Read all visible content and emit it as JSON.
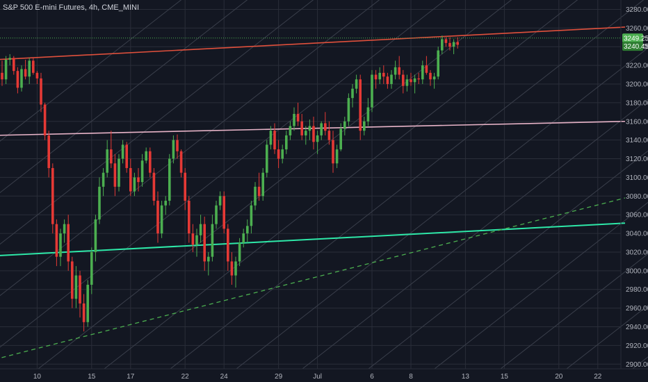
{
  "chart_title": "S&P 500 E-mini Futures, 4h, CME_MINI",
  "colors": {
    "background": "#131722",
    "grid": "#2a2e39",
    "axis_text": "#b2b5be",
    "up": "#4caf50",
    "down": "#e53935",
    "resistance": "#e0503c",
    "mid_line": "#e8b4c8",
    "support": "#2ee8a8",
    "dashed": "#4caf50",
    "channel": "#3a3f4b",
    "badge_price": "#4caf50",
    "badge_secondary": "#2e7d32"
  },
  "price_badges": {
    "last_price": "3249.25",
    "secondary": "3240.45"
  },
  "chart_data": {
    "type": "candlestick",
    "title": "S&P 500 E-mini Futures, 4h, CME_MINI",
    "ylim": [
      2895,
      3290
    ],
    "y_ticks": [
      2900,
      2920,
      2940,
      2960,
      2980,
      3000,
      3020,
      3040,
      3060,
      3080,
      3100,
      3120,
      3140,
      3160,
      3180,
      3200,
      3220,
      3240,
      3260,
      3280
    ],
    "x_ticks": [
      {
        "label": "10",
        "bar": 9
      },
      {
        "label": "15",
        "bar": 23
      },
      {
        "label": "17",
        "bar": 33
      },
      {
        "label": "22",
        "bar": 47
      },
      {
        "label": "24",
        "bar": 57
      },
      {
        "label": "29",
        "bar": 71
      },
      {
        "label": "Jul",
        "bar": 81
      },
      {
        "label": "6",
        "bar": 95
      },
      {
        "label": "8",
        "bar": 105
      },
      {
        "label": "13",
        "bar": 119
      },
      {
        "label": "15",
        "bar": 129
      },
      {
        "label": "20",
        "bar": 143
      },
      {
        "label": "22",
        "bar": 153
      }
    ],
    "candles": [
      [
        3212,
        3225,
        3198,
        3205
      ],
      [
        3205,
        3230,
        3200,
        3226
      ],
      [
        3226,
        3232,
        3220,
        3228
      ],
      [
        3228,
        3230,
        3210,
        3214
      ],
      [
        3214,
        3218,
        3190,
        3196
      ],
      [
        3196,
        3220,
        3192,
        3216
      ],
      [
        3216,
        3226,
        3205,
        3208
      ],
      [
        3208,
        3228,
        3200,
        3225
      ],
      [
        3225,
        3228,
        3210,
        3212
      ],
      [
        3212,
        3214,
        3200,
        3206
      ],
      [
        3206,
        3212,
        3170,
        3178
      ],
      [
        3178,
        3180,
        3140,
        3145
      ],
      [
        3145,
        3150,
        3100,
        3110
      ],
      [
        3110,
        3115,
        3040,
        3050
      ],
      [
        3050,
        3055,
        3005,
        3015
      ],
      [
        3015,
        3045,
        3005,
        3040
      ],
      [
        3040,
        3055,
        3030,
        3050
      ],
      [
        3050,
        3060,
        3000,
        3010
      ],
      [
        3010,
        3015,
        2960,
        2970
      ],
      [
        2970,
        3005,
        2960,
        2995
      ],
      [
        2995,
        3000,
        2950,
        2965
      ],
      [
        2965,
        2975,
        2935,
        2945
      ],
      [
        2945,
        2990,
        2940,
        2985
      ],
      [
        2985,
        3025,
        2975,
        3020
      ],
      [
        3020,
        3060,
        3010,
        3055
      ],
      [
        3055,
        3100,
        3050,
        3090
      ],
      [
        3090,
        3110,
        3080,
        3105
      ],
      [
        3105,
        3140,
        3100,
        3130
      ],
      [
        3130,
        3150,
        3110,
        3115
      ],
      [
        3115,
        3125,
        3080,
        3090
      ],
      [
        3090,
        3125,
        3085,
        3120
      ],
      [
        3120,
        3140,
        3115,
        3135
      ],
      [
        3135,
        3138,
        3105,
        3110
      ],
      [
        3110,
        3120,
        3080,
        3085
      ],
      [
        3085,
        3105,
        3080,
        3100
      ],
      [
        3100,
        3110,
        3085,
        3095
      ],
      [
        3095,
        3125,
        3090,
        3118
      ],
      [
        3118,
        3132,
        3115,
        3128
      ],
      [
        3128,
        3132,
        3100,
        3105
      ],
      [
        3105,
        3110,
        3070,
        3075
      ],
      [
        3075,
        3085,
        3030,
        3040
      ],
      [
        3040,
        3075,
        3035,
        3070
      ],
      [
        3070,
        3080,
        3060,
        3075
      ],
      [
        3075,
        3125,
        3070,
        3120
      ],
      [
        3120,
        3145,
        3115,
        3140
      ],
      [
        3140,
        3146,
        3120,
        3128
      ],
      [
        3128,
        3130,
        3100,
        3105
      ],
      [
        3105,
        3110,
        3065,
        3075
      ],
      [
        3075,
        3080,
        3030,
        3040
      ],
      [
        3040,
        3050,
        3020,
        3028
      ],
      [
        3028,
        3045,
        3015,
        3038
      ],
      [
        3038,
        3060,
        3030,
        3050
      ],
      [
        3050,
        3058,
        3000,
        3010
      ],
      [
        3010,
        3020,
        2995,
        3015
      ],
      [
        3015,
        3060,
        3010,
        3050
      ],
      [
        3050,
        3075,
        3045,
        3070
      ],
      [
        3070,
        3085,
        3065,
        3080
      ],
      [
        3080,
        3085,
        3040,
        3045
      ],
      [
        3045,
        3050,
        3000,
        3010
      ],
      [
        3010,
        3020,
        2985,
        2995
      ],
      [
        2995,
        3015,
        2982,
        3010
      ],
      [
        3010,
        3035,
        3005,
        3030
      ],
      [
        3030,
        3045,
        3025,
        3040
      ],
      [
        3040,
        3055,
        3030,
        3048
      ],
      [
        3048,
        3075,
        3040,
        3070
      ],
      [
        3070,
        3095,
        3065,
        3090
      ],
      [
        3090,
        3105,
        3075,
        3080
      ],
      [
        3080,
        3110,
        3075,
        3105
      ],
      [
        3105,
        3140,
        3100,
        3135
      ],
      [
        3135,
        3155,
        3130,
        3150
      ],
      [
        3150,
        3158,
        3125,
        3130
      ],
      [
        3130,
        3140,
        3110,
        3120
      ],
      [
        3120,
        3135,
        3115,
        3130
      ],
      [
        3130,
        3150,
        3125,
        3145
      ],
      [
        3145,
        3160,
        3140,
        3155
      ],
      [
        3155,
        3175,
        3150,
        3168
      ],
      [
        3168,
        3180,
        3155,
        3160
      ],
      [
        3160,
        3168,
        3140,
        3145
      ],
      [
        3145,
        3155,
        3135,
        3150
      ],
      [
        3150,
        3162,
        3140,
        3155
      ],
      [
        3155,
        3165,
        3130,
        3138
      ],
      [
        3138,
        3150,
        3125,
        3145
      ],
      [
        3145,
        3160,
        3140,
        3158
      ],
      [
        3158,
        3170,
        3145,
        3150
      ],
      [
        3150,
        3160,
        3135,
        3140
      ],
      [
        3140,
        3150,
        3105,
        3115
      ],
      [
        3115,
        3135,
        3110,
        3130
      ],
      [
        3130,
        3158,
        3128,
        3152
      ],
      [
        3152,
        3165,
        3145,
        3160
      ],
      [
        3160,
        3190,
        3155,
        3185
      ],
      [
        3185,
        3200,
        3175,
        3195
      ],
      [
        3195,
        3210,
        3190,
        3205
      ],
      [
        3205,
        3210,
        3140,
        3150
      ],
      [
        3150,
        3165,
        3145,
        3160
      ],
      [
        3160,
        3185,
        3155,
        3175
      ],
      [
        3175,
        3215,
        3170,
        3210
      ],
      [
        3210,
        3215,
        3195,
        3205
      ],
      [
        3205,
        3218,
        3200,
        3212
      ],
      [
        3212,
        3220,
        3200,
        3208
      ],
      [
        3208,
        3212,
        3195,
        3200
      ],
      [
        3200,
        3215,
        3195,
        3210
      ],
      [
        3210,
        3225,
        3205,
        3218
      ],
      [
        3218,
        3230,
        3205,
        3210
      ],
      [
        3210,
        3215,
        3190,
        3198
      ],
      [
        3198,
        3210,
        3192,
        3205
      ],
      [
        3205,
        3212,
        3198,
        3202
      ],
      [
        3202,
        3210,
        3190,
        3206
      ],
      [
        3206,
        3212,
        3200,
        3205
      ],
      [
        3205,
        3225,
        3200,
        3220
      ],
      [
        3220,
        3230,
        3210,
        3212
      ],
      [
        3212,
        3215,
        3198,
        3205
      ],
      [
        3205,
        3212,
        3195,
        3208
      ],
      [
        3208,
        3240,
        3205,
        3236
      ],
      [
        3236,
        3252,
        3232,
        3248
      ],
      [
        3248,
        3250,
        3240,
        3244
      ],
      [
        3244,
        3250,
        3236,
        3240
      ],
      [
        3240,
        3248,
        3232,
        3245
      ],
      [
        3245,
        3250,
        3238,
        3242
      ]
    ],
    "lines": [
      {
        "style": "resistance",
        "from": {
          "bar": -2,
          "price": 3226
        },
        "to": {
          "bar": 160,
          "price": 3261
        }
      },
      {
        "style": "mid_line",
        "from": {
          "bar": -2,
          "price": 3145
        },
        "to": {
          "bar": 160,
          "price": 3160
        }
      },
      {
        "style": "support",
        "from": {
          "bar": -2,
          "price": 3016
        },
        "to": {
          "bar": 160,
          "price": 3051
        }
      },
      {
        "style": "dashed",
        "from": {
          "bar": -2,
          "price": 2905
        },
        "to": {
          "bar": 160,
          "price": 3078
        }
      }
    ]
  }
}
